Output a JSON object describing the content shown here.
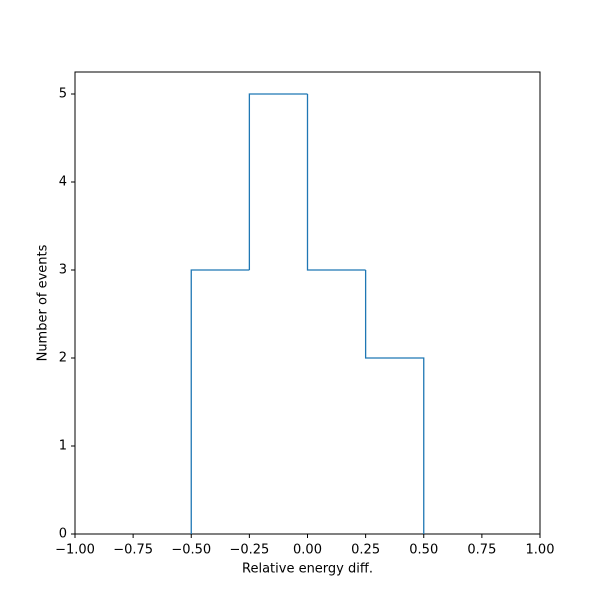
{
  "chart_data": {
    "type": "histogram",
    "xlabel": "Relative energy diff.",
    "ylabel": "Number of events",
    "bins": [
      -0.5,
      -0.25,
      0,
      0.25,
      0.5
    ],
    "values": [
      3,
      5,
      3,
      2
    ],
    "color": "#1f77b4",
    "xlim": [
      -1,
      1
    ],
    "ylim": [
      0,
      5.25
    ],
    "xticks": [
      {
        "value": -1,
        "label": "−1.00"
      },
      {
        "value": -0.75,
        "label": "−0.75"
      },
      {
        "value": -0.5,
        "label": "−0.50"
      },
      {
        "value": -0.25,
        "label": "−0.25"
      },
      {
        "value": 0,
        "label": "0.00"
      },
      {
        "value": 0.25,
        "label": "0.25"
      },
      {
        "value": 0.5,
        "label": "0.50"
      },
      {
        "value": 0.75,
        "label": "0.75"
      },
      {
        "value": 1,
        "label": "1.00"
      }
    ],
    "yticks": [
      0,
      1,
      2,
      3,
      4,
      5
    ]
  }
}
